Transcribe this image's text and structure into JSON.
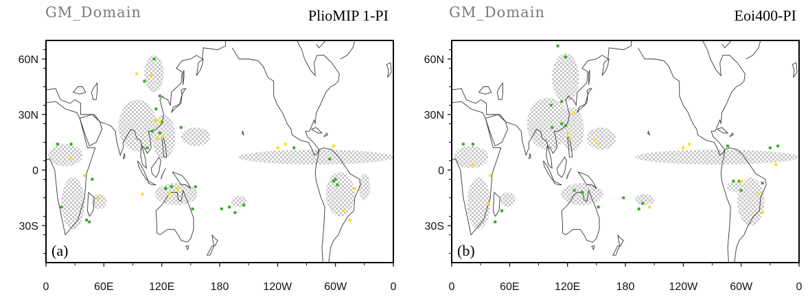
{
  "panels": [
    {
      "id": "a",
      "domain_label": "GM_Domain",
      "experiment_label": "PlioMIP 1-PI",
      "panel_letter": "(a)"
    },
    {
      "id": "b",
      "domain_label": "GM_Domain",
      "experiment_label": "Eoi400-PI",
      "panel_letter": "(b)"
    }
  ],
  "map": {
    "lon_range": [
      0,
      360
    ],
    "lat_range": [
      -50,
      70
    ],
    "x_ticks": [
      {
        "lon": 0,
        "label": "0"
      },
      {
        "lon": 60,
        "label": "60E"
      },
      {
        "lon": 120,
        "label": "120E"
      },
      {
        "lon": 180,
        "label": "180"
      },
      {
        "lon": 240,
        "label": "120W"
      },
      {
        "lon": 300,
        "label": "60W"
      },
      {
        "lon": 360,
        "label": "0"
      }
    ],
    "y_ticks": [
      {
        "lat": 60,
        "label": "60N"
      },
      {
        "lat": 30,
        "label": "30N"
      },
      {
        "lat": 0,
        "label": "0"
      },
      {
        "lat": -30,
        "label": "30S"
      }
    ],
    "colors": {
      "domain_gray": "#c8c8c8",
      "green": "#3aa82a",
      "yellow": "#f2e21a",
      "coast": "#333333"
    }
  }
}
